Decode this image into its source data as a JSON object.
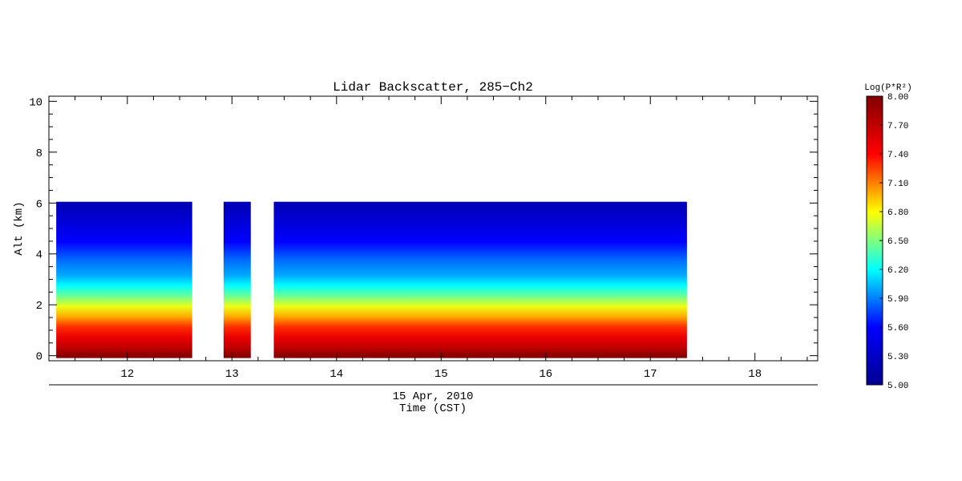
{
  "chart_data": {
    "type": "heatmap",
    "title": "Lidar Backscatter, 285−Ch2",
    "ylabel": "Alt (km)",
    "date_label": "15 Apr, 2010",
    "xlabel": "Time (CST)",
    "x_unit": "hour (CST)",
    "xlim": [
      11.25,
      18.6
    ],
    "ylim": [
      -0.2,
      10.2
    ],
    "x_ticks": [
      12,
      13,
      14,
      15,
      16,
      17,
      18
    ],
    "y_ticks": [
      0,
      2,
      4,
      6,
      8,
      10
    ],
    "data_top_alt": 6.05,
    "data_segments": [
      {
        "start": 11.32,
        "end": 12.62
      },
      {
        "start": 12.92,
        "end": 13.18
      },
      {
        "start": 13.4,
        "end": 17.35
      }
    ],
    "vertical_profile": [
      {
        "alt": 0.1,
        "value": 7.95
      },
      {
        "alt": 0.4,
        "value": 7.7
      },
      {
        "alt": 0.8,
        "value": 7.5
      },
      {
        "alt": 1.2,
        "value": 7.3
      },
      {
        "alt": 1.6,
        "value": 7.0
      },
      {
        "alt": 2.0,
        "value": 6.75
      },
      {
        "alt": 2.4,
        "value": 6.45
      },
      {
        "alt": 2.8,
        "value": 6.2
      },
      {
        "alt": 3.2,
        "value": 6.0
      },
      {
        "alt": 3.8,
        "value": 5.85
      },
      {
        "alt": 4.5,
        "value": 5.6
      },
      {
        "alt": 5.2,
        "value": 5.4
      },
      {
        "alt": 6.0,
        "value": 5.2
      }
    ],
    "colorbar": {
      "label": "Log(P*R²)",
      "min": 5.0,
      "max": 8.0,
      "ticks": [
        "8.00",
        "7.70",
        "7.40",
        "7.10",
        "6.80",
        "6.50",
        "6.20",
        "5.90",
        "5.60",
        "5.30",
        "5.00"
      ],
      "colormap": [
        "#00008f",
        "#0000ff",
        "#00ffff",
        "#ffff00",
        "#ff0000",
        "#800000"
      ]
    },
    "legend_placement": "right",
    "grid": false
  }
}
